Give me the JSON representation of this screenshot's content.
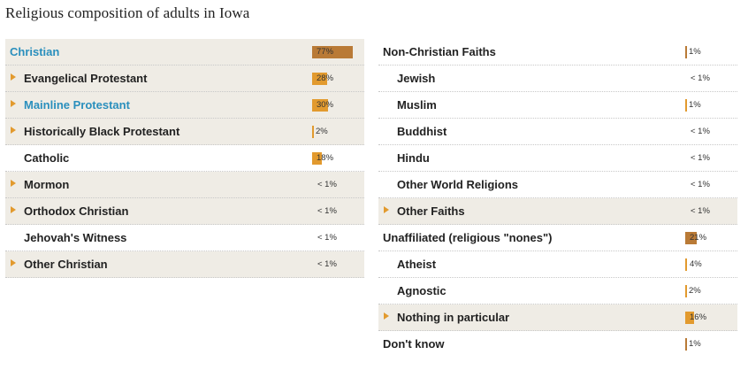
{
  "title": "Religious composition of adults in Iowa",
  "colors": {
    "bar_top": "#b97a36",
    "bar_sub": "#e29a2e",
    "highlight": "#2a8fbd"
  },
  "left_rows": [
    {
      "label": "Christian",
      "value": "77%",
      "pct": 77,
      "level": 0,
      "expandable": false,
      "highlight": true
    },
    {
      "label": "Evangelical Protestant",
      "value": "28%",
      "pct": 28,
      "level": 1,
      "expandable": true,
      "highlight": false
    },
    {
      "label": "Mainline Protestant",
      "value": "30%",
      "pct": 30,
      "level": 1,
      "expandable": true,
      "highlight": true
    },
    {
      "label": "Historically Black Protestant",
      "value": "2%",
      "pct": 2,
      "level": 1,
      "expandable": true,
      "highlight": false
    },
    {
      "label": "Catholic",
      "value": "18%",
      "pct": 18,
      "level": 1,
      "expandable": false,
      "highlight": false
    },
    {
      "label": "Mormon",
      "value": "< 1%",
      "pct": 0,
      "level": 1,
      "expandable": true,
      "highlight": false
    },
    {
      "label": "Orthodox Christian",
      "value": "< 1%",
      "pct": 0,
      "level": 1,
      "expandable": true,
      "highlight": false
    },
    {
      "label": "Jehovah's Witness",
      "value": "< 1%",
      "pct": 0,
      "level": 1,
      "expandable": false,
      "highlight": false
    },
    {
      "label": "Other Christian",
      "value": "< 1%",
      "pct": 0,
      "level": 1,
      "expandable": true,
      "highlight": false
    }
  ],
  "right_rows": [
    {
      "label": "Non-Christian Faiths",
      "value": "1%",
      "pct": 1,
      "level": 0,
      "expandable": false,
      "highlight": false
    },
    {
      "label": "Jewish",
      "value": "< 1%",
      "pct": 0,
      "level": 1,
      "expandable": false,
      "highlight": false
    },
    {
      "label": "Muslim",
      "value": "1%",
      "pct": 1,
      "level": 1,
      "expandable": false,
      "highlight": false
    },
    {
      "label": "Buddhist",
      "value": "< 1%",
      "pct": 0,
      "level": 1,
      "expandable": false,
      "highlight": false
    },
    {
      "label": "Hindu",
      "value": "< 1%",
      "pct": 0,
      "level": 1,
      "expandable": false,
      "highlight": false
    },
    {
      "label": "Other World Religions",
      "value": "< 1%",
      "pct": 0,
      "level": 1,
      "expandable": false,
      "highlight": false
    },
    {
      "label": "Other Faiths",
      "value": "< 1%",
      "pct": 0,
      "level": 1,
      "expandable": true,
      "highlight": false
    },
    {
      "label": "Unaffiliated (religious \"nones\")",
      "value": "21%",
      "pct": 21,
      "level": 0,
      "expandable": false,
      "highlight": false
    },
    {
      "label": "Atheist",
      "value": "4%",
      "pct": 4,
      "level": 1,
      "expandable": false,
      "highlight": false
    },
    {
      "label": "Agnostic",
      "value": "2%",
      "pct": 2,
      "level": 1,
      "expandable": false,
      "highlight": false
    },
    {
      "label": "Nothing in particular",
      "value": "16%",
      "pct": 16,
      "level": 1,
      "expandable": true,
      "highlight": false
    },
    {
      "label": "Don't know",
      "value": "1%",
      "pct": 1,
      "level": 0,
      "expandable": false,
      "highlight": false
    }
  ]
}
